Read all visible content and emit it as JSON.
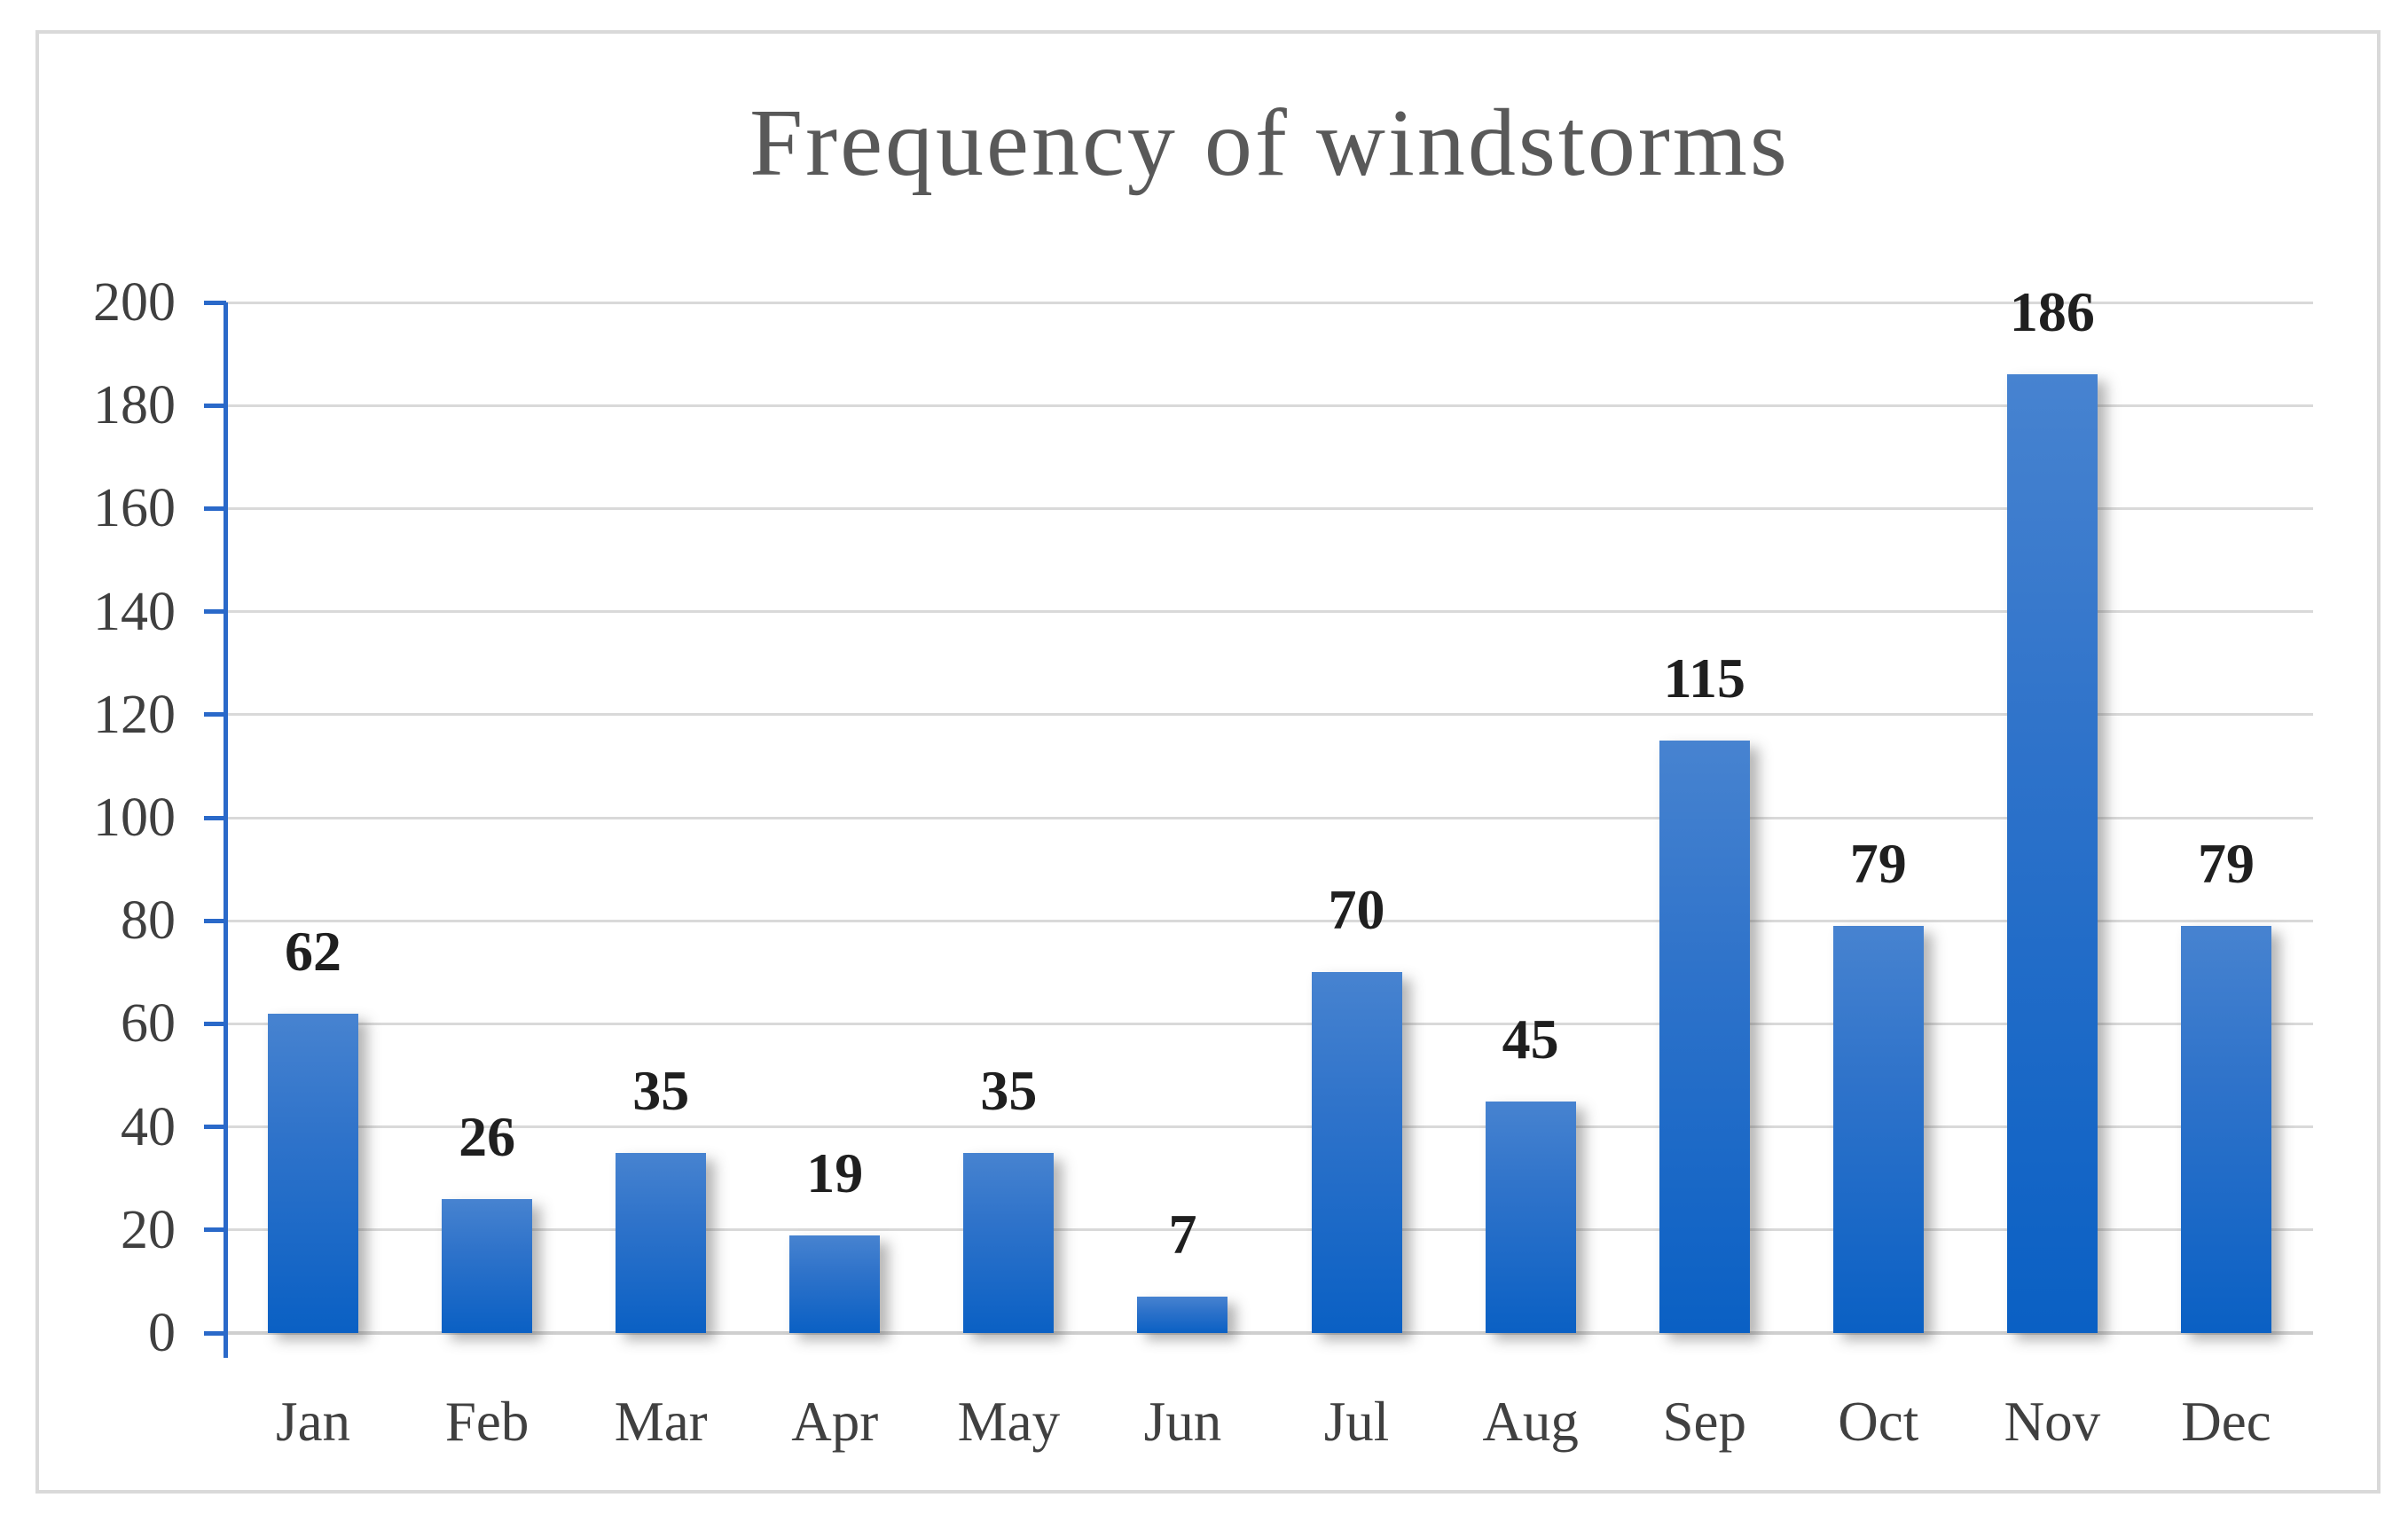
{
  "chart_data": {
    "type": "bar",
    "title": "Frequency of windstorms",
    "categories": [
      "Jan",
      "Feb",
      "Mar",
      "Apr",
      "May",
      "Jun",
      "Jul",
      "Aug",
      "Sep",
      "Oct",
      "Nov",
      "Dec"
    ],
    "values": [
      62,
      26,
      35,
      19,
      35,
      7,
      70,
      45,
      115,
      79,
      186,
      79
    ],
    "data_labels": [
      "62",
      "26",
      "35",
      "19",
      "35",
      "7",
      "70",
      "45",
      "115",
      "79",
      "186",
      "79"
    ],
    "xlabel": "",
    "ylabel": "",
    "ylim": [
      0,
      200
    ],
    "ytick_step": 20,
    "ytick_labels": [
      "0",
      "20",
      "40",
      "60",
      "80",
      "100",
      "120",
      "140",
      "160",
      "180",
      "200"
    ],
    "grid": "horizontal",
    "legend_position": "none",
    "colors": {
      "bar_gradient_top": "#4783D0",
      "bar_gradient_bottom": "#0A60C4",
      "value_axis_line": "#2A69C9",
      "gridline": "#D9D9D9",
      "category_axis_line": "#CFCFCF",
      "title_text": "#595959",
      "tick_text": "#3F3F3F",
      "data_label_text": "#1F1F1F",
      "frame_border": "#D9D9D9",
      "background": "#FFFFFF"
    }
  }
}
